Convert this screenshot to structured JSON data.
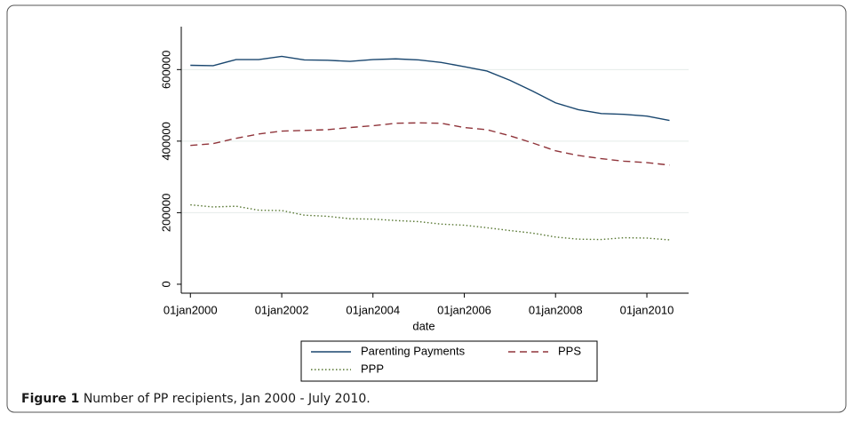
{
  "chart_data": {
    "type": "line",
    "x_label": "date",
    "x": [
      "2000-01-01",
      "2000-07-01",
      "2001-01-01",
      "2001-07-01",
      "2002-01-01",
      "2002-07-01",
      "2003-01-01",
      "2003-07-01",
      "2004-01-01",
      "2004-07-01",
      "2005-01-01",
      "2005-07-01",
      "2006-01-01",
      "2006-07-01",
      "2007-01-01",
      "2007-07-01",
      "2008-01-01",
      "2008-07-01",
      "2009-01-01",
      "2009-07-01",
      "2010-01-01",
      "2010-07-01"
    ],
    "series": [
      {
        "name": "Parenting Payments",
        "color": "#1a476f",
        "dash": "none",
        "values": [
          612000,
          611000,
          628000,
          628000,
          637000,
          627000,
          626000,
          623000,
          628000,
          630000,
          627000,
          620000,
          608000,
          596000,
          570000,
          540000,
          507000,
          488000,
          477000,
          475000,
          470000,
          458000
        ]
      },
      {
        "name": "PPS",
        "color": "#90353b",
        "dash": "8 5",
        "values": [
          388000,
          393000,
          408000,
          420000,
          428000,
          430000,
          432000,
          438000,
          443000,
          450000,
          451000,
          450000,
          438000,
          432000,
          415000,
          395000,
          373000,
          360000,
          351000,
          344000,
          340000,
          333000
        ]
      },
      {
        "name": "PPP",
        "color": "#55752f",
        "dash": "1.5 2.5",
        "values": [
          222000,
          216000,
          218000,
          207000,
          206000,
          193000,
          190000,
          183000,
          182000,
          178000,
          175000,
          168000,
          165000,
          158000,
          150000,
          143000,
          132000,
          126000,
          125000,
          130000,
          129000,
          124000
        ]
      }
    ],
    "xlim": [
      "1999-10-20",
      "2010-12-01"
    ],
    "xticks": [
      {
        "value": "2000-01-01",
        "label": "01jan2000"
      },
      {
        "value": "2002-01-01",
        "label": "01jan2002"
      },
      {
        "value": "2004-01-01",
        "label": "01jan2004"
      },
      {
        "value": "2006-01-01",
        "label": "01jan2006"
      },
      {
        "value": "2008-01-01",
        "label": "01jan2008"
      },
      {
        "value": "2010-01-01",
        "label": "01jan2010"
      }
    ],
    "ylim": [
      -25000,
      720000
    ],
    "yticks": [
      0,
      200000,
      400000,
      600000
    ],
    "grid": true
  },
  "caption": {
    "label": "Figure 1",
    "text": "Number of PP recipients, Jan 2000 - July 2010."
  }
}
